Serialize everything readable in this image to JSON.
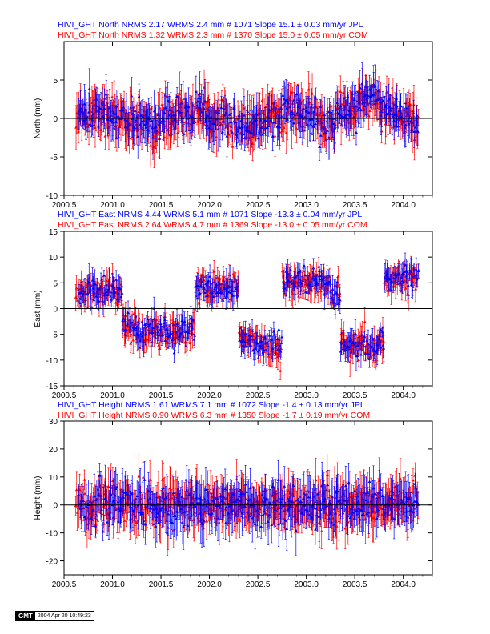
{
  "colors": {
    "jpl": "#0000ff",
    "com": "#ff0000",
    "axis": "#000000"
  },
  "stamp": {
    "logo": "GMT",
    "timestamp": "2004 Apr 20 10:49:23"
  },
  "chart_data": [
    {
      "type": "scatter",
      "component": "North",
      "ylabel": "North (mm)",
      "xlim": [
        2000.5,
        2004.3
      ],
      "ylim": [
        -10,
        10
      ],
      "xticks": [
        "2000.5",
        "2001.0",
        "2001.5",
        "2002.0",
        "2002.5",
        "2003.0",
        "2003.5",
        "2004.0"
      ],
      "yticks": [
        "-10",
        "-5",
        "0",
        "5"
      ],
      "header": [
        "HIVI_GHT North NRMS 2.17 WRMS  2.4 mm # 1071 Slope   15.1 ±  0.03 mm/yr JPL",
        "HIVI_GHT North NRMS 1.32 WRMS  2.3 mm # 1370 Slope   15.0 ±  0.05 mm/yr COM"
      ],
      "series": [
        {
          "name": "JPL",
          "nrms": 2.17,
          "wrms_mm": 2.4,
          "count": 1071,
          "slope_mm_yr": 15.1,
          "slope_sigma": 0.03,
          "start": 2000.65,
          "end": 2004.16
        },
        {
          "name": "COM",
          "nrms": 1.32,
          "wrms_mm": 2.3,
          "count": 1370,
          "slope_mm_yr": 15.0,
          "slope_sigma": 0.05,
          "start": 2000.62,
          "end": 2004.16
        }
      ]
    },
    {
      "type": "scatter",
      "component": "East",
      "ylabel": "East (mm)",
      "xlim": [
        2000.5,
        2004.3
      ],
      "ylim": [
        -15,
        15
      ],
      "xticks": [
        "2000.5",
        "2001.0",
        "2001.5",
        "2002.0",
        "2002.5",
        "2003.0",
        "2003.5",
        "2004.0"
      ],
      "yticks": [
        "-15",
        "-10",
        "-5",
        "0",
        "5",
        "10",
        "15"
      ],
      "header": [
        "HIVI_GHT East NRMS 4.44 WRMS  5.1 mm # 1071 Slope  -13.3 ±  0.04 mm/yr JPL",
        "HIVI_GHT East NRMS 2.64 WRMS  4.7 mm # 1369 Slope  -13.0 ±  0.05 mm/yr COM"
      ],
      "series": [
        {
          "name": "JPL",
          "nrms": 4.44,
          "wrms_mm": 5.1,
          "count": 1071,
          "slope_mm_yr": -13.3,
          "slope_sigma": 0.04,
          "start": 2000.65,
          "end": 2004.16
        },
        {
          "name": "COM",
          "nrms": 2.64,
          "wrms_mm": 4.7,
          "count": 1369,
          "slope_mm_yr": -13.0,
          "slope_sigma": 0.05,
          "start": 2000.62,
          "end": 2004.16
        }
      ]
    },
    {
      "type": "scatter",
      "component": "Height",
      "ylabel": "Height (mm)",
      "xlim": [
        2000.5,
        2004.3
      ],
      "ylim": [
        -25,
        30
      ],
      "xticks": [
        "2000.5",
        "2001.0",
        "2001.5",
        "2002.0",
        "2002.5",
        "2003.0",
        "2003.5",
        "2004.0"
      ],
      "yticks": [
        "-20",
        "-10",
        "0",
        "10",
        "20",
        "30"
      ],
      "header": [
        "HIVI_GHT Height NRMS 1.61 WRMS  7.1 mm # 1072 Slope   -1.4 ±  0.13 mm/yr JPL",
        "HIVI_GHT Height NRMS 0.90 WRMS  6.3 mm # 1350 Slope   -1.7 ±  0.19 mm/yr COM"
      ],
      "series": [
        {
          "name": "JPL",
          "nrms": 1.61,
          "wrms_mm": 7.1,
          "count": 1072,
          "slope_mm_yr": -1.4,
          "slope_sigma": 0.13,
          "start": 2000.65,
          "end": 2004.16
        },
        {
          "name": "COM",
          "nrms": 0.9,
          "wrms_mm": 6.3,
          "count": 1350,
          "slope_mm_yr": -1.7,
          "slope_sigma": 0.19,
          "start": 2000.62,
          "end": 2004.16
        }
      ]
    }
  ]
}
